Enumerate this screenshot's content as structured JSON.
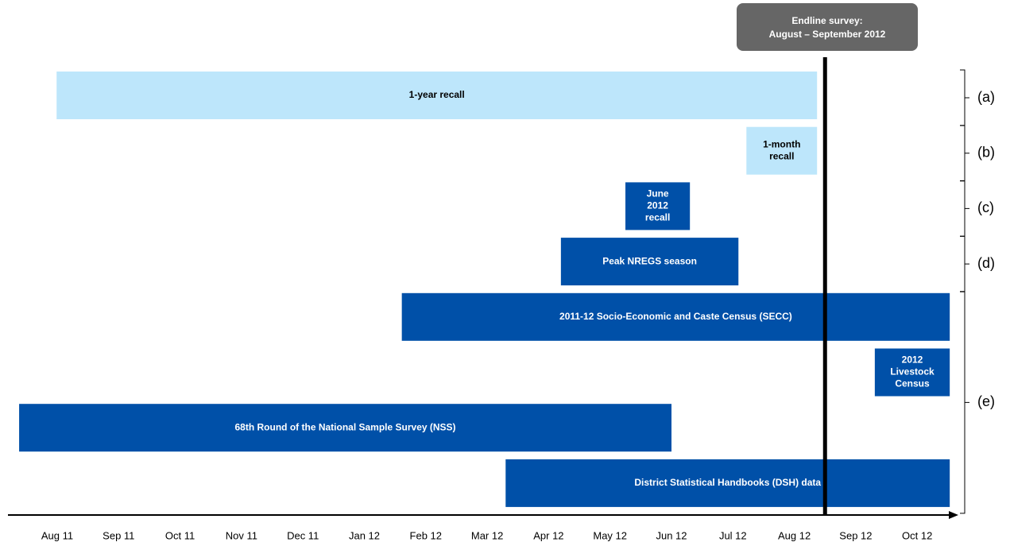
{
  "chart_data": {
    "type": "gantt",
    "categories": [
      "Aug 11",
      "Sep 11",
      "Oct 11",
      "Nov 11",
      "Dec 11",
      "Jan 12",
      "Feb 12",
      "Mar 12",
      "Apr 12",
      "May 12",
      "Jun 12",
      "Jul 12",
      "Aug 12",
      "Sep 12",
      "Oct 12"
    ],
    "tasks": [
      {
        "label": [
          "1-year recall"
        ],
        "start": -0.01,
        "end": 12.37,
        "color": "#bde6fb",
        "group": "(a)"
      },
      {
        "label": [
          "1-month",
          "recall"
        ],
        "start": 11.22,
        "end": 12.37,
        "color": "#bde6fb",
        "group": "(b)"
      },
      {
        "label": [
          "June",
          "2012",
          "recall"
        ],
        "start": 9.25,
        "end": 10.3,
        "color": "#0050a8",
        "group": "(c)"
      },
      {
        "label": [
          "Peak NREGS season"
        ],
        "start": 8.2,
        "end": 11.09,
        "color": "#0050a8",
        "group": "(d)"
      },
      {
        "label": [
          "2011-12 Socio-Economic and Caste Census (SECC)"
        ],
        "start": 5.61,
        "end": 14.53,
        "color": "#0050a8",
        "group": "(e)"
      },
      {
        "label": [
          "2012",
          "Livestock",
          "Census"
        ],
        "start": 13.31,
        "end": 14.53,
        "color": "#0050a8",
        "group": "(e)"
      },
      {
        "label": [
          "68th Round of the National Sample Survey (NSS)"
        ],
        "start": -0.62,
        "end": 10.0,
        "color": "#0050a8",
        "group": "(e)"
      },
      {
        "label": [
          "District Statistical Handbooks (DSH) data"
        ],
        "start": 7.3,
        "end": 14.53,
        "color": "#0050a8",
        "group": "(e)"
      }
    ],
    "marker": {
      "label": [
        "Endline survey:",
        "August – September 2012"
      ],
      "x": 12.5,
      "color": "#000000",
      "box_color": "#666666"
    }
  }
}
